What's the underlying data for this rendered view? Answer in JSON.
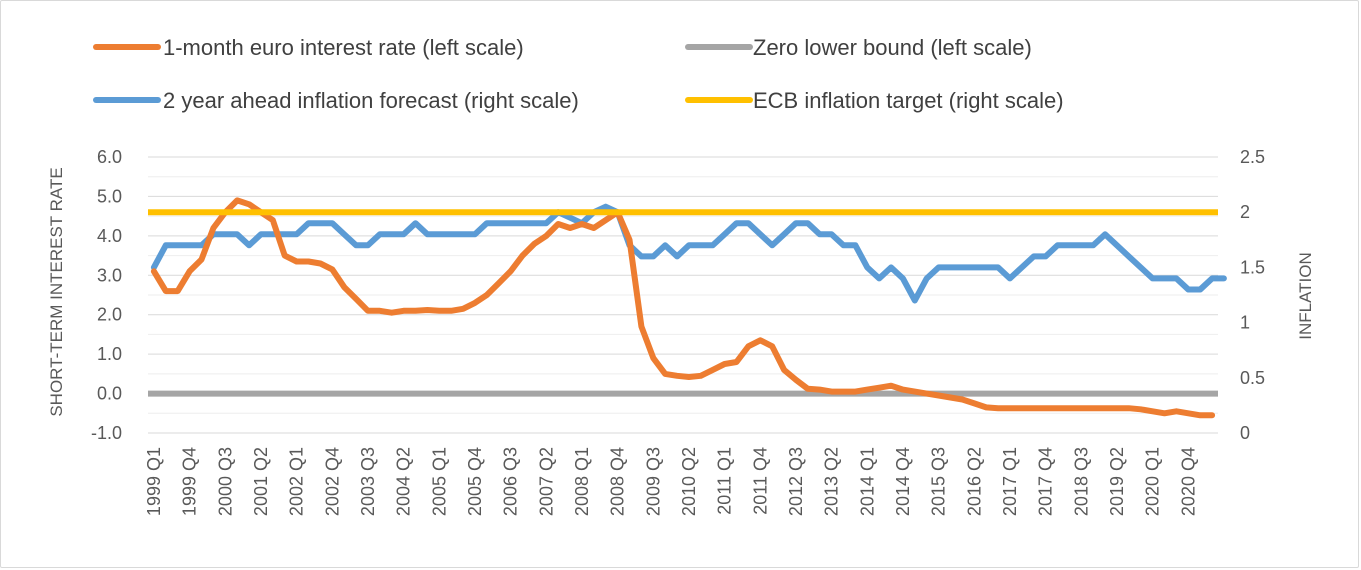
{
  "chart_data": {
    "type": "line",
    "title": "",
    "ylabel": "SHORT-TERM INTEREST RATE",
    "y2label": "INFLATION",
    "ylim": [
      -1.0,
      6.0
    ],
    "y2lim": [
      0,
      2.5
    ],
    "yticks": [
      "6.0",
      "5.0",
      "4.0",
      "3.0",
      "2.0",
      "1.0",
      "0.0",
      "-1.0"
    ],
    "y2ticks": [
      "2.5",
      "2",
      "1.5",
      "1",
      "0.5",
      "0"
    ],
    "xtick_labels": [
      "1999 Q1",
      "1999 Q4",
      "2000 Q3",
      "2001 Q2",
      "2002 Q1",
      "2002 Q4",
      "2003 Q3",
      "2004 Q2",
      "2005 Q1",
      "2005 Q4",
      "2006 Q3",
      "2007 Q2",
      "2008 Q1",
      "2008 Q4",
      "2009 Q3",
      "2010 Q2",
      "2011 Q1",
      "2011 Q4",
      "2012 Q3",
      "2013 Q2",
      "2014 Q1",
      "2014 Q4",
      "2015 Q3",
      "2016 Q2",
      "2017 Q1",
      "2017 Q4",
      "2018 Q3",
      "2019 Q2",
      "2020 Q1",
      "2020 Q4"
    ],
    "grid": true,
    "legend_position": "top",
    "series": [
      {
        "name": "1-month euro interest rate (left scale)",
        "axis": "left",
        "color": "#ED7D31",
        "values": [
          3.1,
          2.6,
          2.6,
          3.1,
          3.4,
          4.2,
          4.6,
          4.9,
          4.8,
          4.6,
          4.4,
          3.5,
          3.35,
          3.35,
          3.3,
          3.15,
          2.7,
          2.4,
          2.1,
          2.1,
          2.05,
          2.1,
          2.1,
          2.12,
          2.1,
          2.1,
          2.15,
          2.3,
          2.5,
          2.8,
          3.1,
          3.5,
          3.8,
          4.0,
          4.3,
          4.2,
          4.3,
          4.2,
          4.4,
          4.6,
          3.9,
          1.7,
          0.9,
          0.5,
          0.45,
          0.42,
          0.45,
          0.6,
          0.75,
          0.8,
          1.2,
          1.35,
          1.2,
          0.6,
          0.35,
          0.12,
          0.1,
          0.05,
          0.05,
          0.05,
          0.1,
          0.15,
          0.2,
          0.1,
          0.05,
          0.0,
          -0.05,
          -0.1,
          -0.15,
          -0.25,
          -0.35,
          -0.37,
          -0.37,
          -0.37,
          -0.37,
          -0.37,
          -0.37,
          -0.37,
          -0.37,
          -0.37,
          -0.37,
          -0.37,
          -0.37,
          -0.4,
          -0.45,
          -0.5,
          -0.45,
          -0.5,
          -0.55,
          -0.55
        ]
      },
      {
        "name": "Zero lower bound (left scale)",
        "axis": "left",
        "color": "#A5A5A5",
        "constant": 0.0
      },
      {
        "name": "2 year ahead inflation forecast (right scale)",
        "axis": "right",
        "color": "#5B9BD5",
        "values": [
          1.5,
          1.7,
          1.7,
          1.7,
          1.7,
          1.8,
          1.8,
          1.8,
          1.7,
          1.8,
          1.8,
          1.8,
          1.8,
          1.9,
          1.9,
          1.9,
          1.8,
          1.7,
          1.7,
          1.8,
          1.8,
          1.8,
          1.9,
          1.8,
          1.8,
          1.8,
          1.8,
          1.8,
          1.9,
          1.9,
          1.9,
          1.9,
          1.9,
          1.9,
          2.0,
          1.95,
          1.9,
          2.0,
          2.05,
          2.0,
          1.7,
          1.6,
          1.6,
          1.7,
          1.6,
          1.7,
          1.7,
          1.7,
          1.8,
          1.9,
          1.9,
          1.8,
          1.7,
          1.8,
          1.9,
          1.9,
          1.8,
          1.8,
          1.7,
          1.7,
          1.5,
          1.4,
          1.5,
          1.4,
          1.2,
          1.4,
          1.5,
          1.5,
          1.5,
          1.5,
          1.5,
          1.5,
          1.4,
          1.5,
          1.6,
          1.6,
          1.7,
          1.7,
          1.7,
          1.7,
          1.8,
          1.7,
          1.6,
          1.5,
          1.4,
          1.4,
          1.4,
          1.3,
          1.3,
          1.4,
          1.4
        ]
      },
      {
        "name": "ECB inflation target (right scale)",
        "axis": "right",
        "color": "#FFC000",
        "constant": 2.0
      }
    ]
  }
}
